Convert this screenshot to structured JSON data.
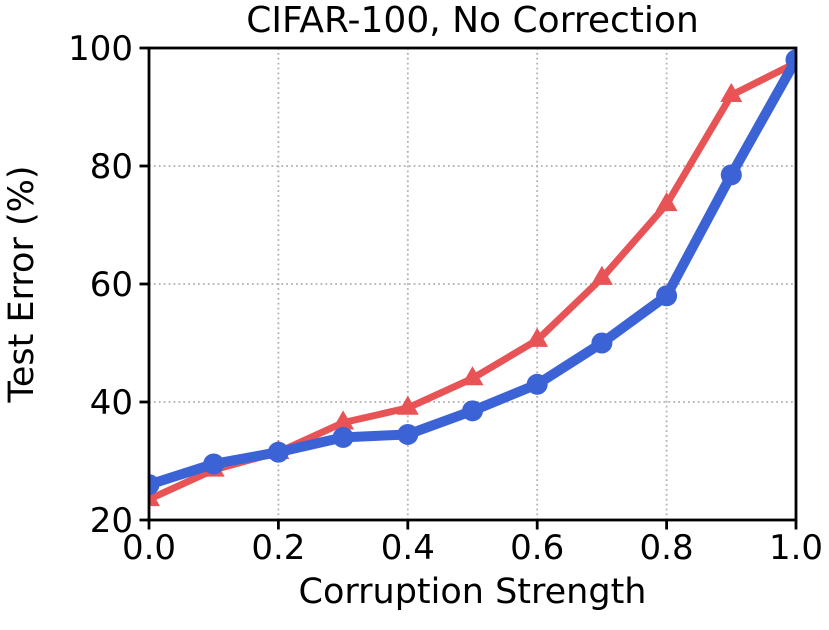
{
  "chart_data": {
    "type": "line",
    "title": "CIFAR-100, No Correction",
    "xlabel": "Corruption Strength",
    "ylabel": "Test Error (%)",
    "xlim": [
      0.0,
      1.0
    ],
    "ylim": [
      20,
      100
    ],
    "xticks": [
      "0.0",
      "0.2",
      "0.4",
      "0.6",
      "0.8",
      "1.0"
    ],
    "yticks": [
      "20",
      "40",
      "60",
      "80",
      "100"
    ],
    "grid": "dotted",
    "legend": "none",
    "x": [
      0.0,
      0.1,
      0.2,
      0.3,
      0.4,
      0.5,
      0.6,
      0.7,
      0.8,
      0.9,
      1.0
    ],
    "series": [
      {
        "name": "red-triangle-series",
        "marker": "triangle-up",
        "color": "#e85456",
        "line_width": 7,
        "marker_size": 22,
        "values": [
          23.5,
          28.5,
          31.5,
          36.5,
          39.0,
          44.0,
          50.5,
          61.0,
          73.5,
          92.0,
          97.5
        ]
      },
      {
        "name": "blue-circle-series",
        "marker": "circle",
        "color": "#3c63d6",
        "line_width": 10,
        "marker_size": 21,
        "values": [
          26.0,
          29.5,
          31.5,
          34.0,
          34.5,
          38.5,
          43.0,
          50.0,
          58.0,
          78.5,
          98.0
        ]
      }
    ],
    "colors": {
      "axis": "#000000",
      "grid": "#b0b0b0",
      "text": "#000000",
      "background": "#ffffff"
    }
  }
}
